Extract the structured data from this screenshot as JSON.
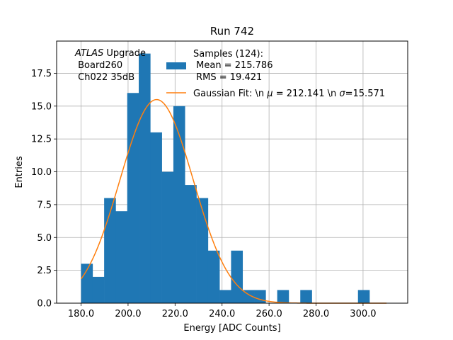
{
  "chart_data": {
    "type": "bar",
    "title": "Run 742",
    "xlabel": "Energy [ADC Counts]",
    "ylabel": "Entries",
    "xlim": [
      169.6,
      319.0
    ],
    "ylim": [
      0,
      19.95
    ],
    "x_ticks": [
      180,
      200,
      220,
      240,
      260,
      280,
      300
    ],
    "x_tick_labels": [
      "180.0",
      "200.0",
      "220.0",
      "240.0",
      "260.0",
      "280.0",
      "300.0"
    ],
    "y_ticks": [
      0,
      2.5,
      5,
      7.5,
      10,
      12.5,
      15,
      17.5
    ],
    "y_tick_labels": [
      "0.0",
      "2.5",
      "5.0",
      "7.5",
      "10.0",
      "12.5",
      "15.0",
      "17.5"
    ],
    "grid": true,
    "bins": {
      "start": 180.0,
      "width": 4.91,
      "counts": [
        3,
        2,
        8,
        7,
        16,
        19,
        13,
        10,
        15,
        9,
        8,
        4,
        1,
        4,
        1,
        1,
        0,
        1,
        0,
        1,
        0,
        0,
        0,
        0,
        1
      ]
    },
    "fit": {
      "type": "gaussian",
      "mu": 212.141,
      "sigma": 15.571,
      "amplitude": 15.5,
      "x_range": [
        180,
        310
      ]
    },
    "series": [
      {
        "name": "Samples (124):",
        "name_lines": [
          "Samples (124):",
          " Mean = 215.786",
          " RMS = 19.421"
        ],
        "color": "#1f77b4"
      },
      {
        "name": "Gaussian Fit: \\n $\\mu$ = 212.141 \\n $\\sigma$=15.571",
        "color": "#ff7f0e"
      }
    ],
    "legend_position": "top-right",
    "annotation": {
      "lines": [
        "ATLAS",
        " Upgrade",
        " Board260",
        " Ch022 35dB"
      ]
    }
  }
}
